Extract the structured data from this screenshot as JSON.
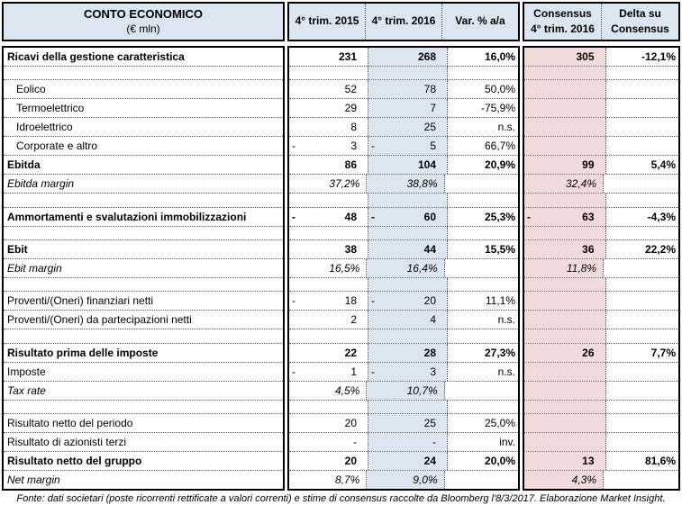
{
  "chart_data": {
    "type": "table",
    "title": "CONTO ECONOMICO",
    "subtitle": "(€ mln)",
    "col_q4_2015": "4° trim. 2015",
    "col_q4_2016": "4° trim. 2016",
    "col_var": "Var. % a/a",
    "col_consensus": [
      "Consensus",
      "4° trim. 2016"
    ],
    "col_delta": [
      "Delta su",
      "Consensus"
    ],
    "colors": {
      "header_bg": "#dce6f1",
      "q4_2016_column_bg": "#dce6f1",
      "consensus_column_bg": "#f2dcdb",
      "border": "#000000"
    },
    "rows": [
      {
        "label": "Ricavi della gestione caratteristica",
        "style": "bold",
        "indent": false,
        "q4_2015": "231",
        "q4_2015_neg": false,
        "q4_2016": "268",
        "q4_2016_neg": false,
        "var_pct": "16,0%",
        "consensus": "305",
        "consensus_neg": false,
        "delta": "-12,1%"
      },
      {
        "style": "empty"
      },
      {
        "label": "Eolico",
        "style": "normal",
        "indent": true,
        "q4_2015": "52",
        "q4_2015_neg": false,
        "q4_2016": "78",
        "q4_2016_neg": false,
        "var_pct": "50,0%",
        "consensus": "",
        "consensus_neg": false,
        "delta": ""
      },
      {
        "label": "Termoelettrico",
        "style": "normal",
        "indent": true,
        "q4_2015": "29",
        "q4_2015_neg": false,
        "q4_2016": "7",
        "q4_2016_neg": false,
        "var_pct": "-75,9%",
        "consensus": "",
        "consensus_neg": false,
        "delta": ""
      },
      {
        "label": "Idroelettrico",
        "style": "normal",
        "indent": true,
        "q4_2015": "8",
        "q4_2015_neg": false,
        "q4_2016": "25",
        "q4_2016_neg": false,
        "var_pct": "n.s.",
        "consensus": "",
        "consensus_neg": false,
        "delta": ""
      },
      {
        "label": "Corporate e altro",
        "style": "normal",
        "indent": true,
        "q4_2015": "3",
        "q4_2015_neg": true,
        "q4_2016": "5",
        "q4_2016_neg": true,
        "var_pct": "66,7%",
        "consensus": "",
        "consensus_neg": false,
        "delta": ""
      },
      {
        "label": "Ebitda",
        "style": "bold",
        "indent": false,
        "q4_2015": "86",
        "q4_2015_neg": false,
        "q4_2016": "104",
        "q4_2016_neg": false,
        "var_pct": "20,9%",
        "consensus": "99",
        "consensus_neg": false,
        "delta": "5,4%"
      },
      {
        "label": "Ebitda margin",
        "style": "italic",
        "indent": false,
        "q4_2015": "37,2%",
        "q4_2015_neg": false,
        "q4_2016": "38,8%",
        "q4_2016_neg": false,
        "var_pct": "",
        "consensus": "32,4%",
        "consensus_neg": false,
        "delta": ""
      },
      {
        "style": "empty"
      },
      {
        "label": "Ammortamenti e svalutazioni immobilizzazioni",
        "style": "bold",
        "indent": false,
        "q4_2015": "48",
        "q4_2015_neg": true,
        "q4_2016": "60",
        "q4_2016_neg": true,
        "var_pct": "25,3%",
        "consensus": "63",
        "consensus_neg": true,
        "delta": "-4,3%"
      },
      {
        "style": "empty"
      },
      {
        "label": "Ebit",
        "style": "bold",
        "indent": false,
        "q4_2015": "38",
        "q4_2015_neg": false,
        "q4_2016": "44",
        "q4_2016_neg": false,
        "var_pct": "15,5%",
        "consensus": "36",
        "consensus_neg": false,
        "delta": "22,2%"
      },
      {
        "label": "Ebit margin",
        "style": "italic",
        "indent": false,
        "q4_2015": "16,5%",
        "q4_2015_neg": false,
        "q4_2016": "16,4%",
        "q4_2016_neg": false,
        "var_pct": "",
        "consensus": "11,8%",
        "consensus_neg": false,
        "delta": ""
      },
      {
        "style": "empty"
      },
      {
        "label": "Proventi/(Oneri) finanziari netti",
        "style": "normal",
        "indent": false,
        "q4_2015": "18",
        "q4_2015_neg": true,
        "q4_2016": "20",
        "q4_2016_neg": true,
        "var_pct": "11,1%",
        "consensus": "",
        "consensus_neg": false,
        "delta": ""
      },
      {
        "label": "Proventi/(Oneri) da partecipazioni netti",
        "style": "normal",
        "indent": false,
        "q4_2015": "2",
        "q4_2015_neg": false,
        "q4_2016": "4",
        "q4_2016_neg": false,
        "var_pct": "n.s.",
        "consensus": "",
        "consensus_neg": false,
        "delta": ""
      },
      {
        "style": "empty"
      },
      {
        "label": "Risultato prima delle imposte",
        "style": "bold",
        "indent": false,
        "q4_2015": "22",
        "q4_2015_neg": false,
        "q4_2016": "28",
        "q4_2016_neg": false,
        "var_pct": "27,3%",
        "consensus": "26",
        "consensus_neg": false,
        "delta": "7,7%"
      },
      {
        "label": "Imposte",
        "style": "normal",
        "indent": false,
        "q4_2015": "1",
        "q4_2015_neg": true,
        "q4_2016": "3",
        "q4_2016_neg": true,
        "var_pct": "n.s.",
        "consensus": "",
        "consensus_neg": false,
        "delta": ""
      },
      {
        "label": "Tax rate",
        "style": "italic",
        "indent": false,
        "q4_2015": "4,5%",
        "q4_2015_neg": false,
        "q4_2016": "10,7%",
        "q4_2016_neg": false,
        "var_pct": "",
        "consensus": "",
        "consensus_neg": false,
        "delta": ""
      },
      {
        "style": "empty"
      },
      {
        "label": "Risultato netto del periodo",
        "style": "normal",
        "indent": false,
        "q4_2015": "20",
        "q4_2015_neg": false,
        "q4_2016": "25",
        "q4_2016_neg": false,
        "var_pct": "25,0%",
        "consensus": "",
        "consensus_neg": false,
        "delta": ""
      },
      {
        "label": "Risultato di azionisti terzi",
        "style": "normal",
        "indent": false,
        "q4_2015": "-",
        "q4_2015_neg": false,
        "q4_2016": "-",
        "q4_2016_neg": false,
        "var_pct": "inv.",
        "consensus": "",
        "consensus_neg": false,
        "delta": ""
      },
      {
        "label": "Risultato netto del gruppo",
        "style": "bold",
        "indent": false,
        "q4_2015": "20",
        "q4_2015_neg": false,
        "q4_2016": "24",
        "q4_2016_neg": false,
        "var_pct": "20,0%",
        "consensus": "13",
        "consensus_neg": false,
        "delta": "81,6%"
      },
      {
        "label": "Net margin",
        "style": "italic",
        "indent": false,
        "q4_2015": "8,7%",
        "q4_2015_neg": false,
        "q4_2016": "9,0%",
        "q4_2016_neg": false,
        "var_pct": "",
        "consensus": "4,3%",
        "consensus_neg": false,
        "delta": ""
      }
    ],
    "source": "Fonte: dati societari (poste ricorrenti rettificate a valori correnti) e stime di consensus raccolte da Bloomberg l'8/3/2017. Elaborazione Market Insight."
  }
}
